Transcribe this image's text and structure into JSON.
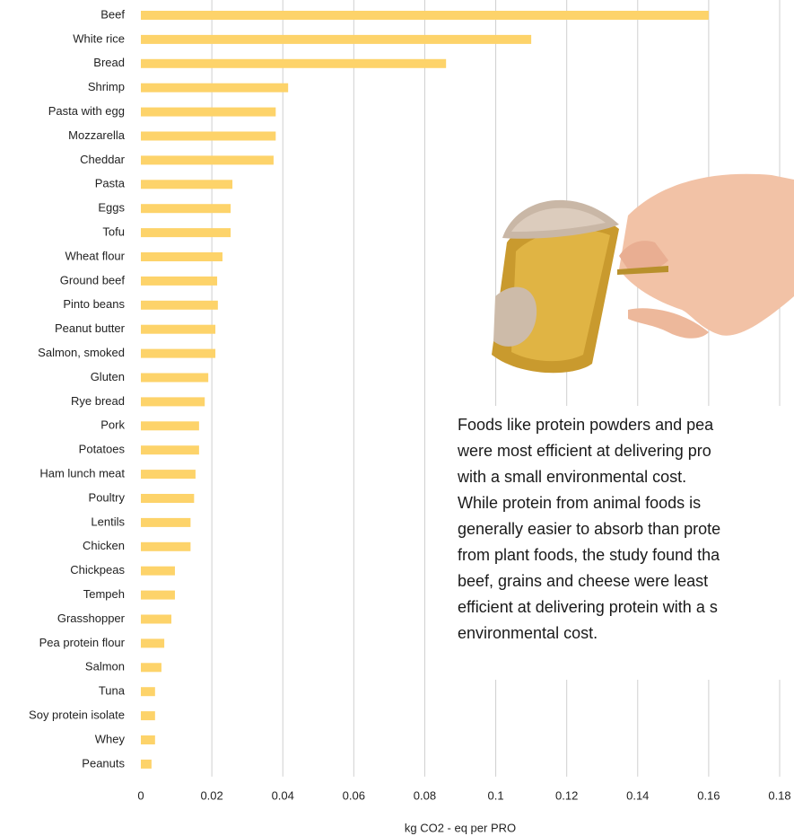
{
  "chart_data": {
    "type": "bar",
    "orientation": "horizontal",
    "categories": [
      "Beef",
      "White rice",
      "Bread",
      "Shrimp",
      "Pasta with egg",
      "Mozzarella",
      "Cheddar",
      "Pasta",
      "Eggs",
      "Tofu",
      "Wheat flour",
      "Ground beef",
      "Pinto beans",
      "Peanut butter",
      "Salmon, smoked",
      "Gluten",
      "Rye bread",
      "Pork",
      "Potatoes",
      "Ham lunch meat",
      "Poultry",
      "Lentils",
      "Chicken",
      "Chickpeas",
      "Tempeh",
      "Grasshopper",
      "Pea protein flour",
      "Salmon",
      "Tuna",
      "Soy protein isolate",
      "Whey",
      "Peanuts"
    ],
    "values": [
      0.16,
      0.11,
      0.086,
      0.0415,
      0.038,
      0.038,
      0.0374,
      0.0258,
      0.0253,
      0.0253,
      0.023,
      0.0215,
      0.0217,
      0.021,
      0.021,
      0.019,
      0.018,
      0.0164,
      0.0164,
      0.0154,
      0.015,
      0.014,
      0.014,
      0.0096,
      0.0096,
      0.0086,
      0.0066,
      0.0058,
      0.004,
      0.004,
      0.004,
      0.003
    ],
    "color": "#fdd36a",
    "xlim": [
      0,
      0.18
    ],
    "xticks": [
      0,
      0.02,
      0.04,
      0.06,
      0.08,
      0.1,
      0.12,
      0.14,
      0.16,
      0.18
    ],
    "x_label": "kg CO2 - eq per PRO",
    "grid": true,
    "annotation": [
      "Foods like protein powders and pea",
      "were most efficient at delivering pro",
      "with a small environmental cost.",
      "While protein from animal foods is",
      "generally easier to absorb than prote",
      "from plant foods, the study found tha",
      "beef, grains and cheese were least",
      "efficient at delivering protein with a s",
      "environmental cost."
    ]
  }
}
